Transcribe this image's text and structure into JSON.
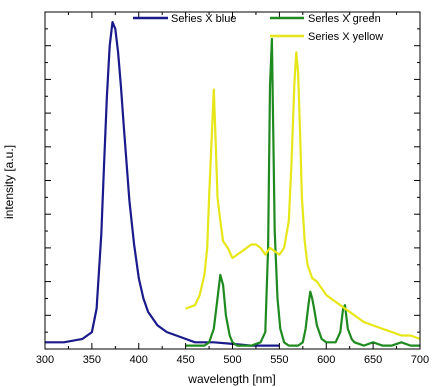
{
  "chart_data": {
    "type": "line",
    "xlabel": "wavelength [nm]",
    "ylabel": "intensity [a.u.]",
    "xlim": [
      300,
      700
    ],
    "ylim": [
      0,
      1.0
    ],
    "xticks": [
      300,
      350,
      400,
      450,
      500,
      550,
      600,
      650,
      700
    ],
    "yticks_labeled": false,
    "grid": false,
    "legend_position": "top-right",
    "series": [
      {
        "name": "Series X blue",
        "color": "#1a1a8c",
        "x": [
          300,
          320,
          340,
          350,
          355,
          360,
          363,
          366,
          369,
          372,
          375,
          378,
          381,
          384,
          387,
          390,
          395,
          400,
          405,
          410,
          420,
          430,
          440,
          450,
          460,
          480,
          500,
          520,
          540,
          550
        ],
        "y": [
          0.02,
          0.02,
          0.03,
          0.05,
          0.12,
          0.34,
          0.55,
          0.75,
          0.9,
          0.97,
          0.95,
          0.88,
          0.78,
          0.66,
          0.55,
          0.44,
          0.31,
          0.21,
          0.15,
          0.11,
          0.07,
          0.05,
          0.04,
          0.03,
          0.02,
          0.02,
          0.015,
          0.01,
          0.01,
          0.01
        ]
      },
      {
        "name": "Series X green",
        "color": "#1f8a1f",
        "x": [
          450,
          460,
          470,
          475,
          480,
          484,
          487,
          490,
          493,
          497,
          500,
          505,
          510,
          520,
          530,
          535,
          538,
          540,
          542,
          545,
          548,
          551,
          555,
          560,
          565,
          570,
          575,
          578,
          581,
          583,
          585,
          587,
          590,
          595,
          600,
          610,
          615,
          618,
          620,
          623,
          627,
          630,
          640,
          650,
          660,
          670,
          680,
          690,
          700
        ],
        "y": [
          0.01,
          0.01,
          0.01,
          0.02,
          0.06,
          0.15,
          0.22,
          0.19,
          0.1,
          0.04,
          0.02,
          0.01,
          0.01,
          0.01,
          0.02,
          0.05,
          0.3,
          0.78,
          0.92,
          0.35,
          0.15,
          0.06,
          0.02,
          0.01,
          0.01,
          0.01,
          0.02,
          0.06,
          0.13,
          0.17,
          0.15,
          0.12,
          0.07,
          0.03,
          0.02,
          0.02,
          0.05,
          0.12,
          0.13,
          0.06,
          0.03,
          0.02,
          0.01,
          0.02,
          0.01,
          0.01,
          0.02,
          0.01,
          0.01
        ]
      },
      {
        "name": "Series X yellow",
        "color": "#e6e619",
        "x": [
          450,
          460,
          465,
          470,
          473,
          475,
          478,
          480,
          482,
          484,
          487,
          490,
          495,
          500,
          505,
          510,
          515,
          520,
          525,
          530,
          535,
          540,
          545,
          550,
          555,
          560,
          563,
          566,
          568,
          570,
          572,
          574,
          577,
          580,
          585,
          590,
          595,
          600,
          610,
          620,
          630,
          640,
          650,
          660,
          670,
          680,
          690,
          700
        ],
        "y": [
          0.12,
          0.13,
          0.16,
          0.22,
          0.3,
          0.45,
          0.64,
          0.77,
          0.62,
          0.45,
          0.38,
          0.32,
          0.3,
          0.27,
          0.28,
          0.29,
          0.3,
          0.31,
          0.31,
          0.3,
          0.28,
          0.3,
          0.29,
          0.28,
          0.3,
          0.38,
          0.56,
          0.79,
          0.88,
          0.82,
          0.65,
          0.45,
          0.32,
          0.25,
          0.21,
          0.2,
          0.18,
          0.16,
          0.14,
          0.12,
          0.1,
          0.08,
          0.07,
          0.06,
          0.05,
          0.04,
          0.04,
          0.03
        ]
      }
    ]
  }
}
